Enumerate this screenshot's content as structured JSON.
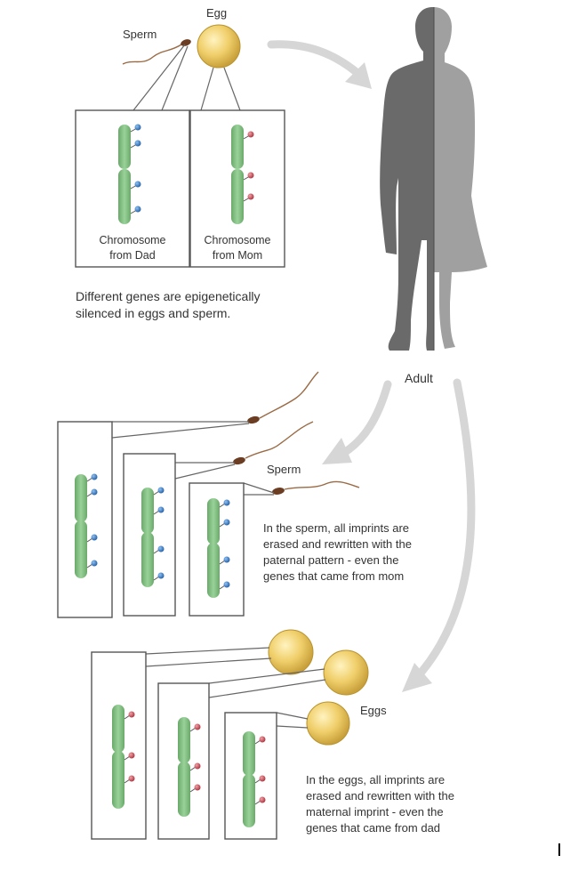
{
  "labels": {
    "egg": "Egg",
    "sperm_top": "Sperm",
    "chromosome_dad_line1": "Chromosome",
    "chromosome_dad_line2": "from Dad",
    "chromosome_mom_line1": "Chromosome",
    "chromosome_mom_line2": "from Mom",
    "caption_line1": "Different genes are epigenetically",
    "caption_line2": "silenced in eggs and sperm.",
    "adult": "Adult",
    "sperm_bottom": "Sperm",
    "sperm_text_line1": "In the sperm, all imprints are",
    "sperm_text_line2": "erased and rewritten with the",
    "sperm_text_line3": "paternal pattern - even the",
    "sperm_text_line4": "genes that came from mom",
    "eggs": "Eggs",
    "eggs_text_line1": "In the eggs, all imprints are",
    "eggs_text_line2": "erased and rewritten with the",
    "eggs_text_line3": "maternal imprint - even the",
    "eggs_text_line4": "genes that came from dad"
  },
  "colors": {
    "paternal_mark": "#3a78c0",
    "maternal_mark": "#c8505a",
    "chromosome": "#7fbf7f",
    "egg": "#f0cf6a",
    "sperm": "#8a5a3a",
    "arrow": "#d6d6d6",
    "silhouette_dark": "#666666",
    "silhouette_light": "#9e9e9e"
  }
}
